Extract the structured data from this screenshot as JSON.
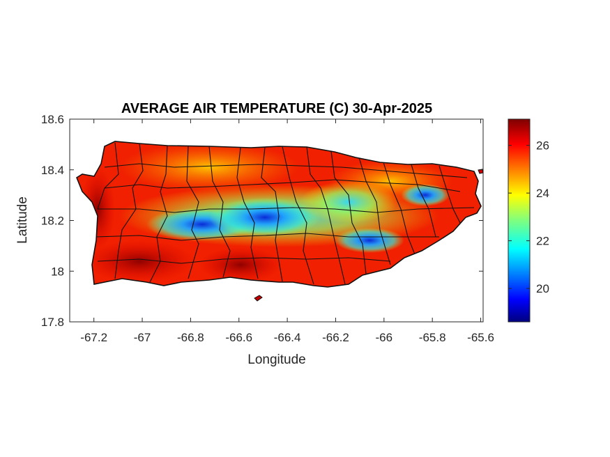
{
  "chart_data": {
    "type": "heatmap",
    "title": "AVERAGE AIR TEMPERATURE (C) 30-Apr-2025",
    "xlabel": "Longitude",
    "ylabel": "Latitude",
    "xlim": [
      -67.3,
      -65.59
    ],
    "ylim": [
      17.8,
      18.6
    ],
    "x_ticks": [
      "-67.2",
      "-67",
      "-66.8",
      "-66.6",
      "-66.4",
      "-66.2",
      "-66",
      "-65.8",
      "-65.6"
    ],
    "x_tick_values": [
      -67.2,
      -67.0,
      -66.8,
      -66.6,
      -66.4,
      -66.2,
      -66.0,
      -65.8,
      -65.6
    ],
    "y_ticks": [
      "18.6",
      "18.4",
      "18.2",
      "18",
      "17.8"
    ],
    "y_tick_values": [
      18.6,
      18.4,
      18.2,
      18.0,
      17.8
    ],
    "colorbar": {
      "colormap": "jet",
      "range": [
        18.6,
        27.1
      ],
      "ticks": [
        "26",
        "24",
        "22",
        "20"
      ],
      "tick_values": [
        26,
        24,
        22,
        20
      ]
    },
    "summary": {
      "coolest_region": "central mountain range, near -66.6 to -66.4 longitude, about 18.17-18.22 latitude",
      "warmest_regions": [
        "southern coast",
        "western coast",
        "northern coast",
        "eastern coast"
      ],
      "approx_min": 19.5,
      "approx_max": 27.0
    },
    "grid": false,
    "legend": "colorbar-right"
  }
}
